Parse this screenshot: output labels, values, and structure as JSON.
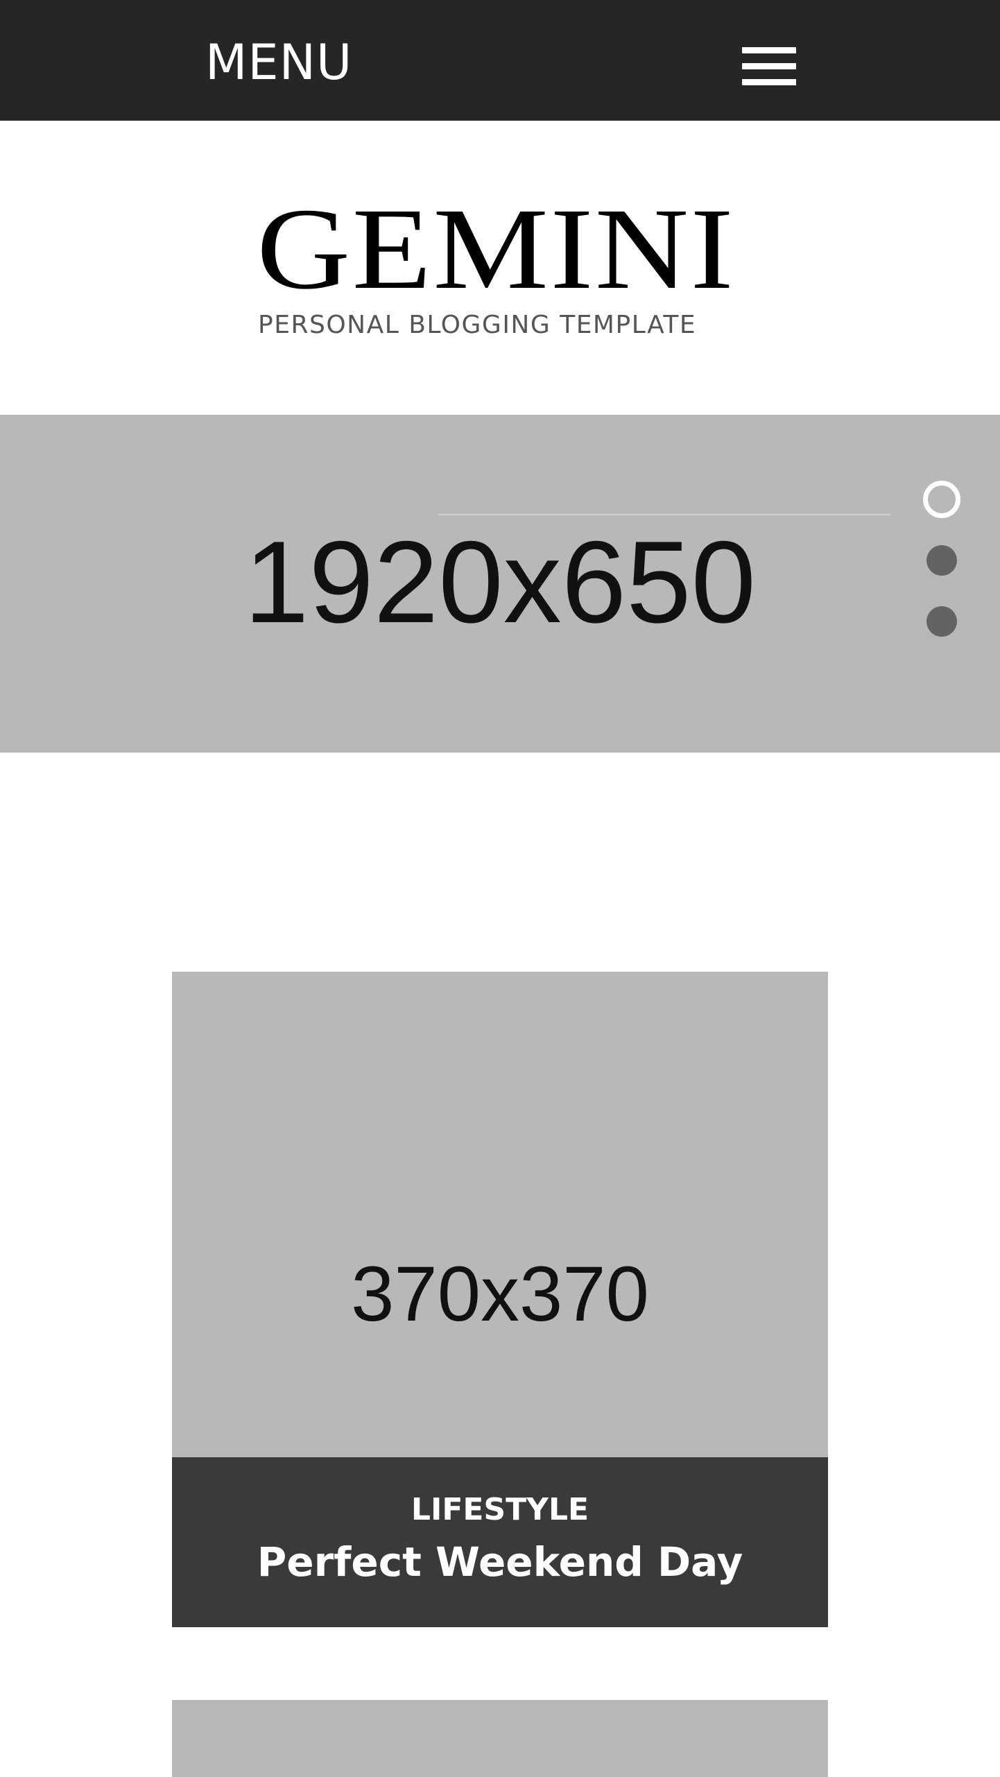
{
  "header": {
    "menu_label": "MENU"
  },
  "logo": {
    "wordmark": "GEMINI",
    "tagline": "PERSONAL BLOGGING TEMPLATE"
  },
  "slider": {
    "placeholder_text": "1920x650",
    "total_slides": 3,
    "active_slide": 1
  },
  "posts": [
    {
      "image_placeholder": "370x370",
      "category": "LIFESTYLE",
      "title": "Perfect Weekend Day"
    }
  ],
  "colors": {
    "topbar": "#262626",
    "placeholder_gray": "#b8b8b8",
    "caption_bg": "#3a3a3a",
    "dot_inactive": "#636363"
  },
  "icons": {
    "menu": "hamburger-icon"
  }
}
